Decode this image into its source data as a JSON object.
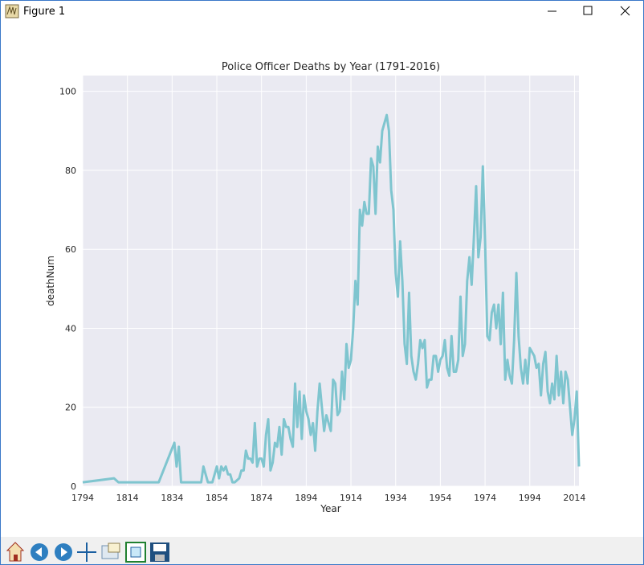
{
  "window": {
    "title": "Figure 1"
  },
  "chart_data": {
    "type": "line",
    "title": "Police Officer Deaths by Year (1791-2016)",
    "x_label": "Year",
    "y_label": "deathNum",
    "color": "#7fc5cf",
    "x": [
      1794,
      1808,
      1810,
      1828,
      1835,
      1836,
      1837,
      1838,
      1847,
      1848,
      1850,
      1852,
      1854,
      1855,
      1856,
      1857,
      1858,
      1859,
      1860,
      1861,
      1862,
      1864,
      1865,
      1866,
      1867,
      1868,
      1869,
      1870,
      1871,
      1872,
      1873,
      1874,
      1875,
      1876,
      1877,
      1878,
      1879,
      1880,
      1881,
      1882,
      1883,
      1884,
      1885,
      1886,
      1887,
      1888,
      1889,
      1890,
      1891,
      1892,
      1893,
      1894,
      1895,
      1896,
      1897,
      1898,
      1899,
      1900,
      1901,
      1902,
      1903,
      1904,
      1905,
      1906,
      1907,
      1908,
      1909,
      1910,
      1911,
      1912,
      1913,
      1914,
      1915,
      1916,
      1917,
      1918,
      1919,
      1920,
      1921,
      1922,
      1923,
      1924,
      1925,
      1926,
      1927,
      1928,
      1929,
      1930,
      1931,
      1932,
      1933,
      1934,
      1935,
      1936,
      1937,
      1938,
      1939,
      1940,
      1941,
      1942,
      1943,
      1944,
      1945,
      1946,
      1947,
      1948,
      1949,
      1950,
      1951,
      1952,
      1953,
      1954,
      1955,
      1956,
      1957,
      1958,
      1959,
      1960,
      1961,
      1962,
      1963,
      1964,
      1965,
      1966,
      1967,
      1968,
      1969,
      1970,
      1971,
      1972,
      1973,
      1974,
      1975,
      1976,
      1977,
      1978,
      1979,
      1980,
      1981,
      1982,
      1983,
      1984,
      1985,
      1986,
      1987,
      1988,
      1989,
      1990,
      1991,
      1992,
      1993,
      1994,
      1995,
      1996,
      1997,
      1998,
      1999,
      2000,
      2001,
      2002,
      2003,
      2004,
      2005,
      2006,
      2007,
      2008,
      2009,
      2010,
      2011,
      2012,
      2013,
      2014,
      2015,
      2016
    ],
    "values": [
      1,
      2,
      1,
      1,
      11,
      5,
      10,
      1,
      1,
      5,
      1,
      1,
      5,
      2,
      5,
      4,
      5,
      3,
      3,
      1,
      1,
      2,
      4,
      4,
      9,
      7,
      7,
      6,
      16,
      5,
      7,
      7,
      5,
      13,
      17,
      4,
      6,
      11,
      10,
      15,
      8,
      17,
      15,
      15,
      12,
      10,
      26,
      15,
      24,
      12,
      23,
      19,
      17,
      13,
      16,
      9,
      19,
      26,
      20,
      14,
      18,
      16,
      14,
      27,
      26,
      18,
      19,
      29,
      22,
      36,
      30,
      32,
      40,
      52,
      46,
      70,
      66,
      72,
      69,
      69,
      83,
      81,
      69,
      86,
      82,
      90,
      92,
      94,
      90,
      75,
      70,
      54,
      48,
      62,
      52,
      36,
      31,
      49,
      33,
      29,
      27,
      31,
      37,
      35,
      37,
      25,
      27,
      27,
      33,
      33,
      29,
      32,
      33,
      37,
      30,
      28,
      38,
      29,
      29,
      32,
      48,
      33,
      36,
      52,
      58,
      51,
      63,
      76,
      58,
      63,
      81,
      62,
      38,
      37,
      44,
      46,
      40,
      46,
      36,
      49,
      27,
      32,
      28,
      26,
      37,
      54,
      38,
      30,
      26,
      32,
      26,
      35,
      34,
      33,
      30,
      31,
      23,
      31,
      34,
      24,
      21,
      26,
      22,
      33,
      23,
      29,
      21,
      29,
      27,
      20,
      13,
      17,
      24,
      5
    ],
    "xlim": [
      1794,
      2016
    ],
    "ylim": [
      0,
      104
    ],
    "xticks": [
      1794,
      1814,
      1834,
      1854,
      1874,
      1894,
      1914,
      1934,
      1954,
      1974,
      1994,
      2014
    ],
    "yticks": [
      0,
      20,
      40,
      60,
      80,
      100
    ],
    "grid": true
  }
}
